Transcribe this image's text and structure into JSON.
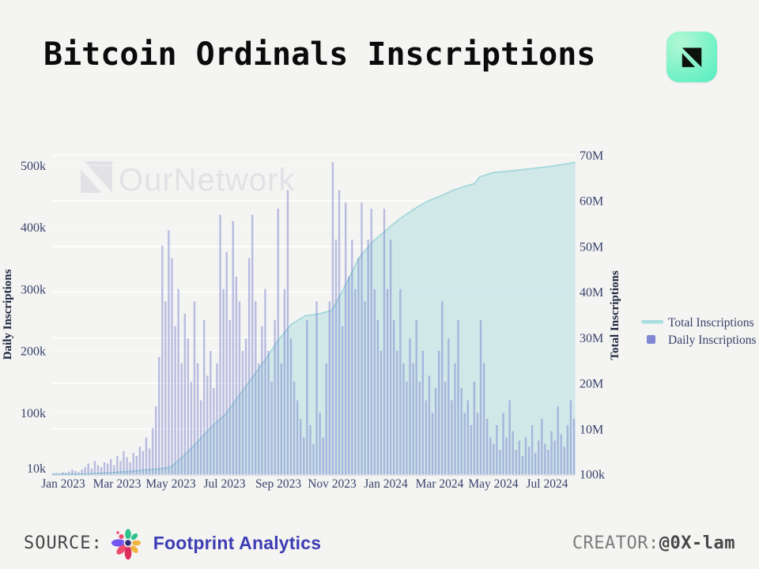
{
  "header": {
    "title": "Bitcoin Ordinals Inscriptions"
  },
  "watermark": {
    "text": "OurNetwork",
    "color": "#e2e2e6"
  },
  "footer": {
    "source_label": "SOURCE:",
    "source_name": "Footprint Analytics",
    "creator_label": "CREATOR:",
    "creator_handle": "@0X-lam"
  },
  "chart_data": {
    "type": "combo",
    "title": "Bitcoin Ordinals Inscriptions",
    "grid": true,
    "legend_position": "right",
    "text_color": "#39426b",
    "axis_title_color": "#20263f",
    "x_axis": {
      "ticks": [
        "Jan 2023",
        "Mar 2023",
        "May 2023",
        "Jul 2023",
        "Sep 2023",
        "Nov 2023",
        "Jan 2024",
        "Mar 2024",
        "May 2024",
        "Jul 2024"
      ],
      "tick_months": [
        0,
        2,
        4,
        6,
        8,
        10,
        12,
        14,
        16,
        18
      ],
      "range": "Jan 2023 - Aug 2024"
    },
    "left_axis": {
      "title": "Daily Inscriptions",
      "ticks": [
        "500k",
        "400k",
        "300k",
        "200k",
        "100k",
        "10k"
      ],
      "tick_values_k": [
        500,
        400,
        300,
        200,
        100,
        10
      ],
      "range_k": [
        0,
        520
      ]
    },
    "right_axis": {
      "title": "Total Inscriptions",
      "ticks": [
        "70M",
        "60M",
        "50M",
        "40M",
        "30M",
        "20M",
        "10M",
        "100k"
      ],
      "tick_values_M": [
        70,
        60,
        50,
        40,
        30,
        20,
        10,
        0.1
      ],
      "range_M": [
        0,
        70
      ]
    },
    "legend": [
      {
        "label": "Total Inscriptions",
        "swatch": "line",
        "color": "#a9dde0"
      },
      {
        "label": "Daily Inscriptions",
        "swatch": "square",
        "color": "#8187d3"
      }
    ],
    "series": [
      {
        "name": "Total Inscriptions",
        "type": "area",
        "axis": "right",
        "unit": "millions",
        "color_fill": "#cde6e8",
        "color_line": "#a5d8db",
        "points_month_value": [
          [
            -0.4,
            0.02
          ],
          [
            0,
            0.04
          ],
          [
            0.5,
            0.08
          ],
          [
            1,
            0.15
          ],
          [
            1.5,
            0.3
          ],
          [
            2,
            0.5
          ],
          [
            2.5,
            0.7
          ],
          [
            3,
            1.0
          ],
          [
            3.5,
            1.2
          ],
          [
            4,
            1.6
          ],
          [
            4.5,
            4.2
          ],
          [
            5,
            7.2
          ],
          [
            5.5,
            10.4
          ],
          [
            6,
            13.0
          ],
          [
            6.5,
            17.0
          ],
          [
            7,
            21.0
          ],
          [
            7.5,
            25.0
          ],
          [
            8,
            29.5
          ],
          [
            8.5,
            33.0
          ],
          [
            9,
            34.8
          ],
          [
            9.5,
            35.2
          ],
          [
            10,
            36.0
          ],
          [
            10.5,
            41.5
          ],
          [
            11,
            47.5
          ],
          [
            11.5,
            51.0
          ],
          [
            12,
            53.5
          ],
          [
            12.5,
            56.0
          ],
          [
            13,
            58.0
          ],
          [
            13.5,
            59.8
          ],
          [
            14,
            61.0
          ],
          [
            14.5,
            62.3
          ],
          [
            15,
            63.3
          ],
          [
            15.3,
            63.8
          ],
          [
            15.5,
            65.3
          ],
          [
            16,
            66.2
          ],
          [
            16.5,
            66.5
          ],
          [
            17,
            66.8
          ],
          [
            17.5,
            67.1
          ],
          [
            18,
            67.5
          ],
          [
            18.5,
            67.9
          ],
          [
            19,
            68.4
          ],
          [
            19.05,
            68.45
          ]
        ]
      },
      {
        "name": "Daily Inscriptions",
        "type": "bar",
        "axis": "left",
        "unit": "thousands",
        "color": "#767dce",
        "sampling": "approx. every 3.5 days, Jan 2023 - Jul 2024",
        "values_k": [
          2,
          3,
          2,
          4,
          3,
          5,
          8,
          6,
          4,
          8,
          12,
          18,
          10,
          22,
          15,
          12,
          20,
          18,
          25,
          15,
          30,
          22,
          38,
          28,
          20,
          35,
          30,
          45,
          38,
          60,
          42,
          75,
          110,
          190,
          370,
          280,
          395,
          350,
          240,
          300,
          180,
          260,
          220,
          150,
          280,
          180,
          120,
          250,
          160,
          200,
          140,
          180,
          420,
          300,
          360,
          250,
          410,
          320,
          280,
          200,
          220,
          350,
          420,
          280,
          180,
          240,
          300,
          200,
          150,
          250,
          430,
          180,
          300,
          460,
          220,
          150,
          120,
          90,
          60,
          250,
          80,
          50,
          280,
          100,
          60,
          180,
          280,
          505,
          380,
          460,
          240,
          440,
          320,
          380,
          300,
          350,
          440,
          280,
          380,
          430,
          300,
          250,
          200,
          430,
          300,
          380,
          250,
          200,
          300,
          180,
          150,
          220,
          180,
          250,
          150,
          200,
          120,
          160,
          100,
          140,
          200,
          280,
          150,
          220,
          120,
          180,
          250,
          140,
          100,
          120,
          80,
          150,
          100,
          250,
          180,
          90,
          60,
          50,
          80,
          40,
          100,
          60,
          120,
          70,
          40,
          55,
          30,
          60,
          45,
          80,
          35,
          55,
          90,
          50,
          40,
          70,
          55,
          110,
          65,
          45,
          80,
          120,
          90
        ]
      }
    ]
  }
}
